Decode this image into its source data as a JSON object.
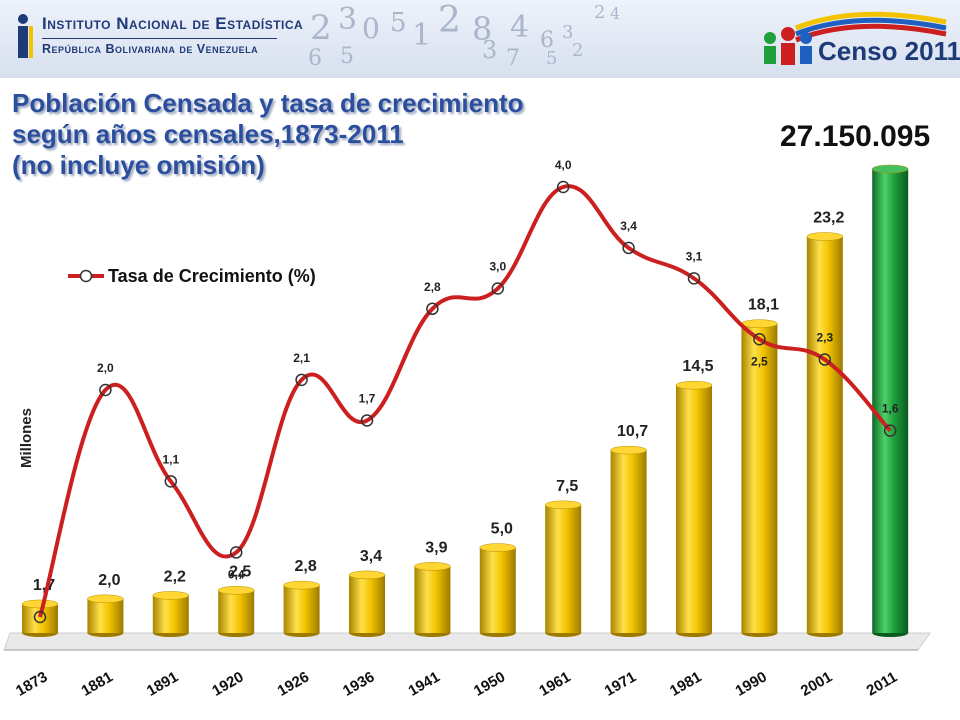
{
  "header": {
    "org_line1": "Instituto Nacional de Estadística",
    "org_line2": "República Bolivariana de Venezuela",
    "census_logo": "Censo 2011",
    "decor_digits": [
      "2",
      "3",
      "0",
      "5",
      "1",
      "2",
      "8",
      "4",
      "3",
      "7",
      "6",
      "5",
      "3",
      "2",
      "2",
      "4",
      "6",
      "5"
    ]
  },
  "title": {
    "line1": "Población Censada y tasa de crecimiento",
    "line2": "según años  censales,1873-2011",
    "line3": "(no incluye omisión)"
  },
  "total_2011": "27.150.095",
  "chart_data": {
    "type": "bar+line",
    "categories": [
      "1873",
      "1881",
      "1891",
      "1920",
      "1926",
      "1936",
      "1941",
      "1950",
      "1961",
      "1971",
      "1981",
      "1990",
      "2001",
      "2011"
    ],
    "ylabel": "Millones",
    "series": [
      {
        "type": "bar",
        "values": [
          1.7,
          2.0,
          2.2,
          2.5,
          2.8,
          3.4,
          3.9,
          5.0,
          7.5,
          10.7,
          14.5,
          18.1,
          23.2,
          27.15
        ],
        "labels": [
          "1,7",
          "2,0",
          "2,2",
          "2,5",
          "2,8",
          "3,4",
          "3,9",
          "5,0",
          "7,5",
          "10,7",
          "14,5",
          "18,1",
          "23,2",
          ""
        ],
        "colors": [
          "#f2c400",
          "#f2c400",
          "#f2c400",
          "#f2c400",
          "#f2c400",
          "#f2c400",
          "#f2c400",
          "#f2c400",
          "#f2c400",
          "#f2c400",
          "#f2c400",
          "#f2c400",
          "#f2c400",
          "#1fa03c"
        ]
      },
      {
        "type": "line",
        "name": "Tasa de Crecimiento (%)",
        "values": [
          null,
          2.0,
          1.1,
          0.4,
          2.1,
          1.7,
          2.8,
          3.0,
          4.0,
          3.4,
          3.1,
          2.5,
          2.3,
          1.6
        ],
        "labels": [
          "",
          "2,0",
          "1,1",
          "0,4",
          "2,1",
          "1,7",
          "2,8",
          "3,0",
          "4,0",
          "3,4",
          "3,1",
          "2,5",
          "2,3",
          "1,6"
        ],
        "color": "#cc1f1f"
      }
    ],
    "legend": "top-left",
    "grid": false
  }
}
